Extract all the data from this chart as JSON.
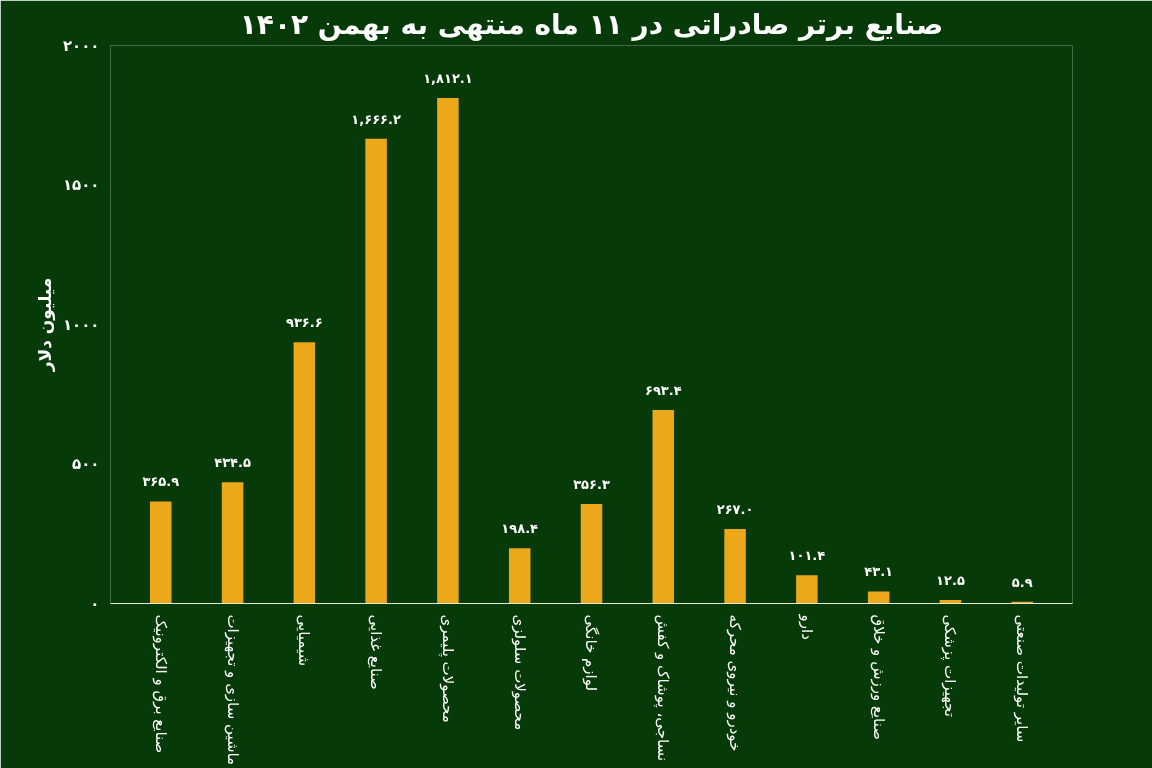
{
  "chart_data": {
    "type": "bar",
    "title": "صنایع برتر صادراتی در ۱۱ ماه منتهی به بهمن ۱۴۰۲",
    "ylabel": "میلیون دلار",
    "categories": [
      "صنایع برق و الکترونیک",
      "ماشین سازی و تجهیزات",
      "شیمیایی",
      "صنایع غذایی",
      "محصولات پلیمری",
      "محصولات سلولزی",
      "لوازم خانگی",
      "نساجی، پوشاک و کفش",
      "خودرو و نیروی محرکه",
      "دارو",
      "صنایع ورزش و خلاق",
      "تجهیزات پزشکی",
      "سایر تولیدات صنعتی"
    ],
    "values": [
      365.9,
      434.5,
      936.6,
      1666.2,
      1812.1,
      198.4,
      356.3,
      693.4,
      267.0,
      101.4,
      43.1,
      12.5,
      5.9
    ],
    "value_labels": [
      "۳۶۵.۹",
      "۴۳۴.۵",
      "۹۳۶.۶",
      "۱,۶۶۶.۲",
      "۱,۸۱۲.۱",
      "۱۹۸.۴",
      "۳۵۶.۳",
      "۶۹۳.۴",
      "۲۶۷.۰",
      "۱۰۱.۴",
      "۴۳.۱",
      "۱۲.۵",
      "۵.۹"
    ],
    "color": "#eaa81a",
    "ylim": [
      0,
      2000
    ],
    "yticks": [
      {
        "value": 0,
        "label": "۰"
      },
      {
        "value": 500,
        "label": "۵۰۰"
      },
      {
        "value": 1000,
        "label": "۱۰۰۰"
      },
      {
        "value": 1500,
        "label": "۱۵۰۰"
      },
      {
        "value": 2000,
        "label": "۲۰۰۰"
      }
    ],
    "grid": false
  }
}
